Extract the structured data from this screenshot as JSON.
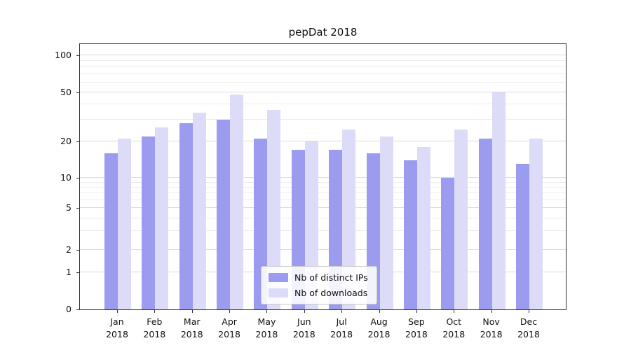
{
  "chart_data": {
    "type": "bar",
    "title": "pepDat 2018",
    "categories": [
      "Jan",
      "Feb",
      "Mar",
      "Apr",
      "May",
      "Jun",
      "Jul",
      "Aug",
      "Sep",
      "Oct",
      "Nov",
      "Dec"
    ],
    "year": "2018",
    "series": [
      {
        "name": "Nb of distinct IPs",
        "color": "#9b9bf0",
        "values": [
          16,
          22,
          28,
          30,
          21,
          17,
          17,
          16,
          14,
          10,
          21,
          13
        ]
      },
      {
        "name": "Nb of downloads",
        "color": "#dcdcf9",
        "values": [
          21,
          26,
          34,
          48,
          36,
          20,
          25,
          22,
          18,
          25,
          50,
          21
        ]
      }
    ],
    "yticks": [
      0,
      1,
      2,
      5,
      10,
      20,
      50,
      100
    ],
    "xlabel": "",
    "ylabel": "",
    "yscale": "symlog",
    "ylim": [
      0,
      112
    ],
    "grid": true,
    "legend_position": "bottom-center"
  }
}
